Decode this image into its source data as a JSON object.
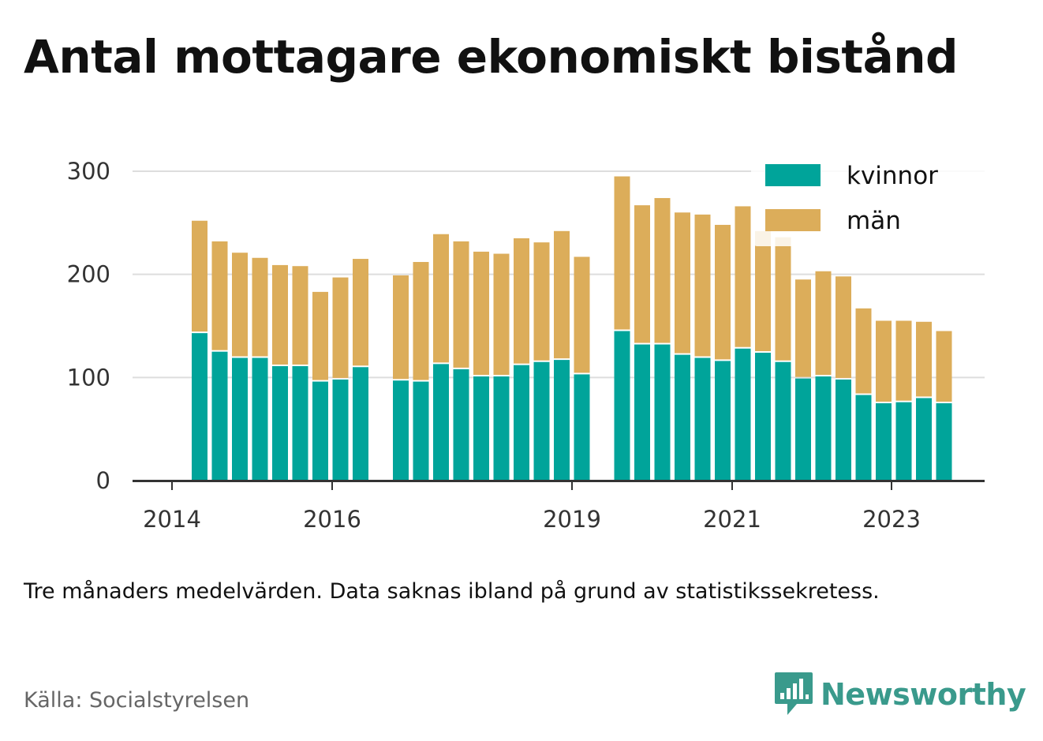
{
  "title": "Antal mottagare ekonomiskt bistånd",
  "note": "Tre månaders medelvärden. Data saknas ibland på grund av statistikssekretess.",
  "source": "Källa: Socialstyrelsen",
  "brand": {
    "name": "Newsworthy",
    "icon": "newsworthy-logo-icon",
    "color": "#3a9a8c"
  },
  "chart_data": {
    "type": "bar",
    "stacked": true,
    "yticks": [
      0,
      100,
      200,
      300
    ],
    "ylim": [
      0,
      300
    ],
    "xticks": [
      "2014",
      "2016",
      "2019",
      "2021",
      "2023"
    ],
    "grid": true,
    "legend_position": "top-right",
    "series": [
      {
        "name": "kvinnor",
        "color": "#00a49a",
        "values": [
          143,
          125,
          119,
          119,
          111,
          111,
          96,
          98,
          110,
          null,
          97,
          96,
          113,
          108,
          101,
          101,
          112,
          115,
          117,
          103,
          null,
          145,
          132,
          132,
          122,
          119,
          116,
          128,
          124,
          115,
          99,
          101,
          98,
          83,
          75,
          76,
          80,
          75
        ]
      },
      {
        "name": "män",
        "color": "#dcad5a",
        "values": [
          109,
          107,
          102,
          97,
          98,
          97,
          87,
          99,
          105,
          null,
          102,
          116,
          126,
          124,
          121,
          119,
          123,
          116,
          125,
          114,
          null,
          150,
          135,
          142,
          138,
          139,
          132,
          138,
          118,
          121,
          96,
          102,
          100,
          84,
          80,
          79,
          74,
          70
        ]
      }
    ]
  }
}
